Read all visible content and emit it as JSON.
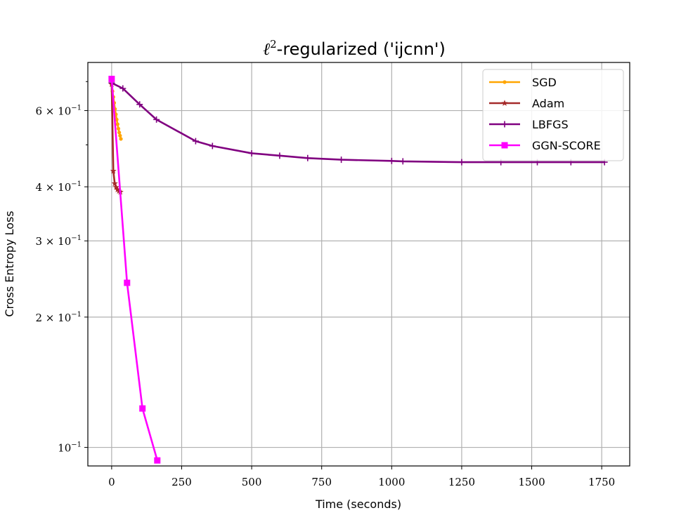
{
  "chart_data": {
    "type": "line",
    "title": {
      "main": "-regularized ('ijcnn')",
      "symbol": "ℓ",
      "sup": "2"
    },
    "xlabel": "Time (seconds)",
    "ylabel": "Cross Entropy Loss",
    "xlim": [
      -85,
      1850
    ],
    "ylim": [
      0.0906,
      0.775
    ],
    "yscale": "log",
    "grid": true,
    "legend_position": "top-right",
    "x_ticks": [
      {
        "value": 0,
        "label": "0"
      },
      {
        "value": 250,
        "label": "250"
      },
      {
        "value": 500,
        "label": "500"
      },
      {
        "value": 750,
        "label": "750"
      },
      {
        "value": 1000,
        "label": "1000"
      },
      {
        "value": 1250,
        "label": "1250"
      },
      {
        "value": 1500,
        "label": "1500"
      },
      {
        "value": 1750,
        "label": "1750"
      }
    ],
    "y_ticks": [
      {
        "value": 0.1,
        "mant": "10",
        "exp": "−1"
      },
      {
        "value": 0.2,
        "mant": "2 × 10",
        "exp": "−1"
      },
      {
        "value": 0.3,
        "mant": "3 × 10",
        "exp": "−1"
      },
      {
        "value": 0.4,
        "mant": "4 × 10",
        "exp": "−1"
      },
      {
        "value": 0.6,
        "mant": "6 × 10",
        "exp": "−1"
      }
    ],
    "y_minor_ticks": [
      0.5,
      0.7
    ],
    "series": [
      {
        "name": "SGD",
        "color": "#ffa500",
        "marker": "dot",
        "x": [
          0,
          3,
          6,
          9,
          12,
          15,
          18,
          21,
          24,
          27,
          30,
          33
        ],
        "y": [
          0.69,
          0.665,
          0.645,
          0.625,
          0.605,
          0.588,
          0.572,
          0.558,
          0.545,
          0.534,
          0.525,
          0.516
        ]
      },
      {
        "name": "Adam",
        "color": "#a52a2a",
        "marker": "star",
        "x": [
          0,
          6,
          11,
          16,
          21,
          26,
          31
        ],
        "y": [
          0.69,
          0.435,
          0.407,
          0.399,
          0.394,
          0.391,
          0.389
        ]
      },
      {
        "name": "LBFGS",
        "color": "#800080",
        "marker": "plus",
        "x": [
          0,
          40,
          100,
          160,
          300,
          360,
          500,
          600,
          700,
          820,
          1000,
          1040,
          1250,
          1390,
          1520,
          1640,
          1760
        ],
        "y": [
          0.695,
          0.675,
          0.62,
          0.572,
          0.51,
          0.497,
          0.478,
          0.472,
          0.466,
          0.462,
          0.459,
          0.458,
          0.456,
          0.456,
          0.456,
          0.456,
          0.456
        ]
      },
      {
        "name": "GGN-SCORE",
        "color": "#ff00ff",
        "marker": "square",
        "x": [
          0,
          55,
          110,
          163
        ],
        "y": [
          0.71,
          0.24,
          0.123,
          0.0933
        ]
      }
    ]
  }
}
